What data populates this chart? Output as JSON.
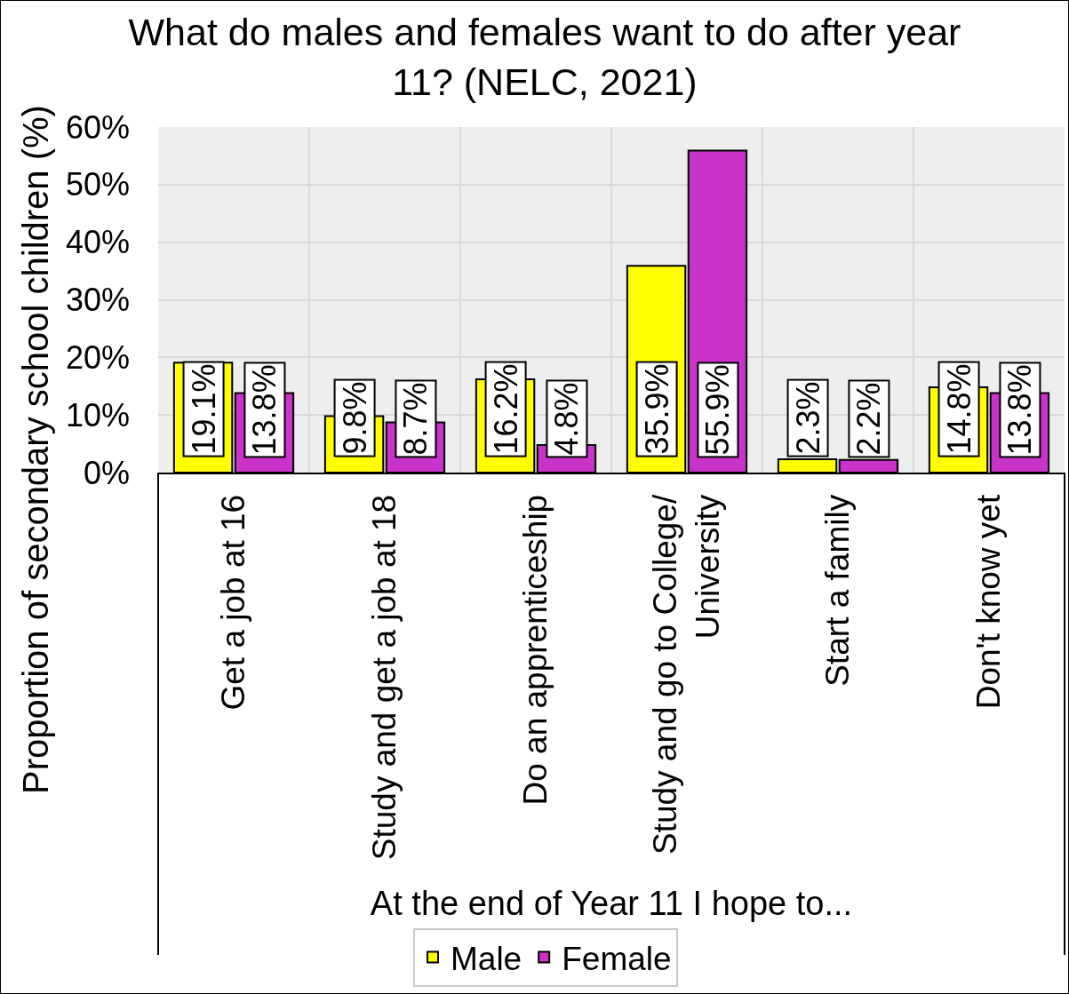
{
  "chart_data": {
    "type": "bar",
    "title": "What do males and females want to do after year 11? (NELC, 2021)",
    "xlabel": "At the end of Year 11 I hope to...",
    "ylabel": "Proportion of secondary school children (%)",
    "categories": [
      "Get a job at 16",
      "Study and get a job at 18",
      "Do an apprenticeship",
      "Study and go to College/ University",
      "Start a family",
      "Don't know yet"
    ],
    "series": [
      {
        "name": "Male",
        "color": "#ffff00",
        "values": [
          19.1,
          9.8,
          16.2,
          35.9,
          2.3,
          14.8
        ],
        "value_labels": [
          "19.1%",
          "9.8%",
          "16.2%",
          "35.9%",
          "2.3%",
          "14.8%"
        ]
      },
      {
        "name": "Female",
        "color": "#c933c9",
        "values": [
          13.8,
          8.7,
          4.8,
          55.9,
          2.2,
          13.8
        ],
        "value_labels": [
          "13.8%",
          "8.7%",
          "4.8%",
          "55.9%",
          "2.2%",
          "13.8%"
        ]
      }
    ],
    "ylim": [
      0,
      60
    ],
    "yticks": [
      {
        "value": 0,
        "label": "0%"
      },
      {
        "value": 10,
        "label": "10%"
      },
      {
        "value": 20,
        "label": "20%"
      },
      {
        "value": 30,
        "label": "30%"
      },
      {
        "value": 40,
        "label": "40%"
      },
      {
        "value": 50,
        "label": "50%"
      },
      {
        "value": 60,
        "label": "60%"
      }
    ],
    "grid": true,
    "legend": "bottom"
  }
}
